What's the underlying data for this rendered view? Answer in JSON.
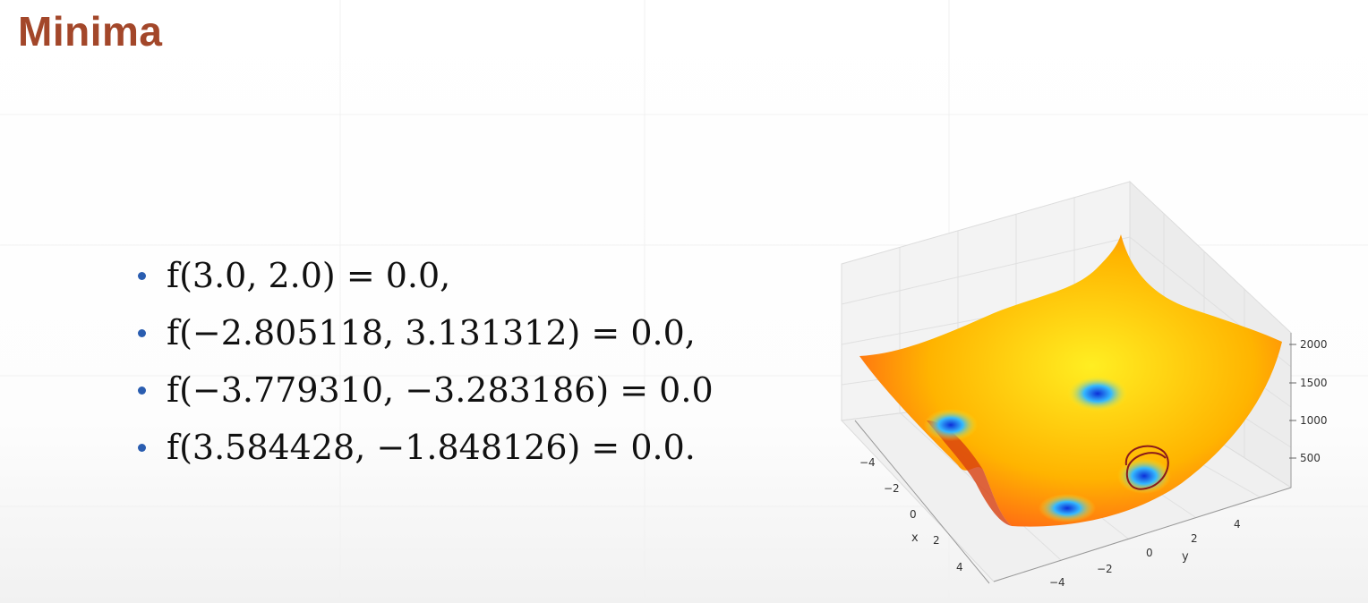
{
  "slide": {
    "title": "Minima"
  },
  "minima": [
    "f(3.0, 2.0) = 0.0,",
    "f(−2.805118, 3.131312) = 0.0,",
    "f(−3.779310, −3.283186) = 0.0",
    "f(3.584428, −1.848126) = 0.0."
  ],
  "plot": {
    "z_ticks": [
      "2000",
      "1500",
      "1000",
      "500"
    ],
    "x_ticks": [
      "−4",
      "−2",
      "0",
      "2",
      "4"
    ],
    "y_ticks": [
      "−4",
      "−2",
      "0",
      "2",
      "4"
    ],
    "x_label": "x",
    "y_label": "y",
    "colormap": [
      "#0c2fd8",
      "#35b9ff",
      "#ffee22",
      "#ffb400",
      "#ff6a14",
      "#dc3410"
    ],
    "annotation_color": "#8a1a1a"
  }
}
